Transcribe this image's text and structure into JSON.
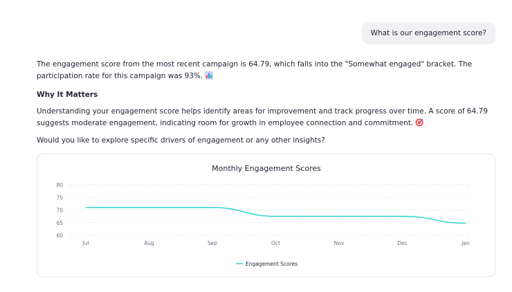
{
  "chat": {
    "user_message": "What is our engagement score?",
    "answer": {
      "paragraph1": "The engagement score from the most recent campaign is 64.79, which falls into the \"Somewhat engaged\" bracket. The participation rate for this campaign was 93%.",
      "heading": "Why It Matters",
      "paragraph2": "Understanding your engagement score helps identify areas for improvement and track progress over time. A score of 64.79 suggests moderate engagement, indicating room for growth in employee connection and commitment.",
      "followup": "Would you like to explore specific drivers of engagement or any other insights?"
    }
  },
  "chart_data": {
    "type": "line",
    "title": "Monthly Engagement Scores",
    "categories": [
      "Jul",
      "Aug",
      "Sep",
      "Oct",
      "Nov",
      "Dec",
      "Jan"
    ],
    "yticks": [
      60,
      65,
      70,
      75,
      80
    ],
    "ylim": [
      60,
      80
    ],
    "grid": true,
    "legend_position": "bottom",
    "series": [
      {
        "name": "Engagement Scores",
        "color": "#2dd4cf",
        "values": [
          71,
          71,
          71,
          67.5,
          67.5,
          67.5,
          64.79
        ]
      }
    ]
  },
  "icons": {
    "chart_emoji": "bar-chart-icon",
    "target_emoji": "target-icon"
  }
}
